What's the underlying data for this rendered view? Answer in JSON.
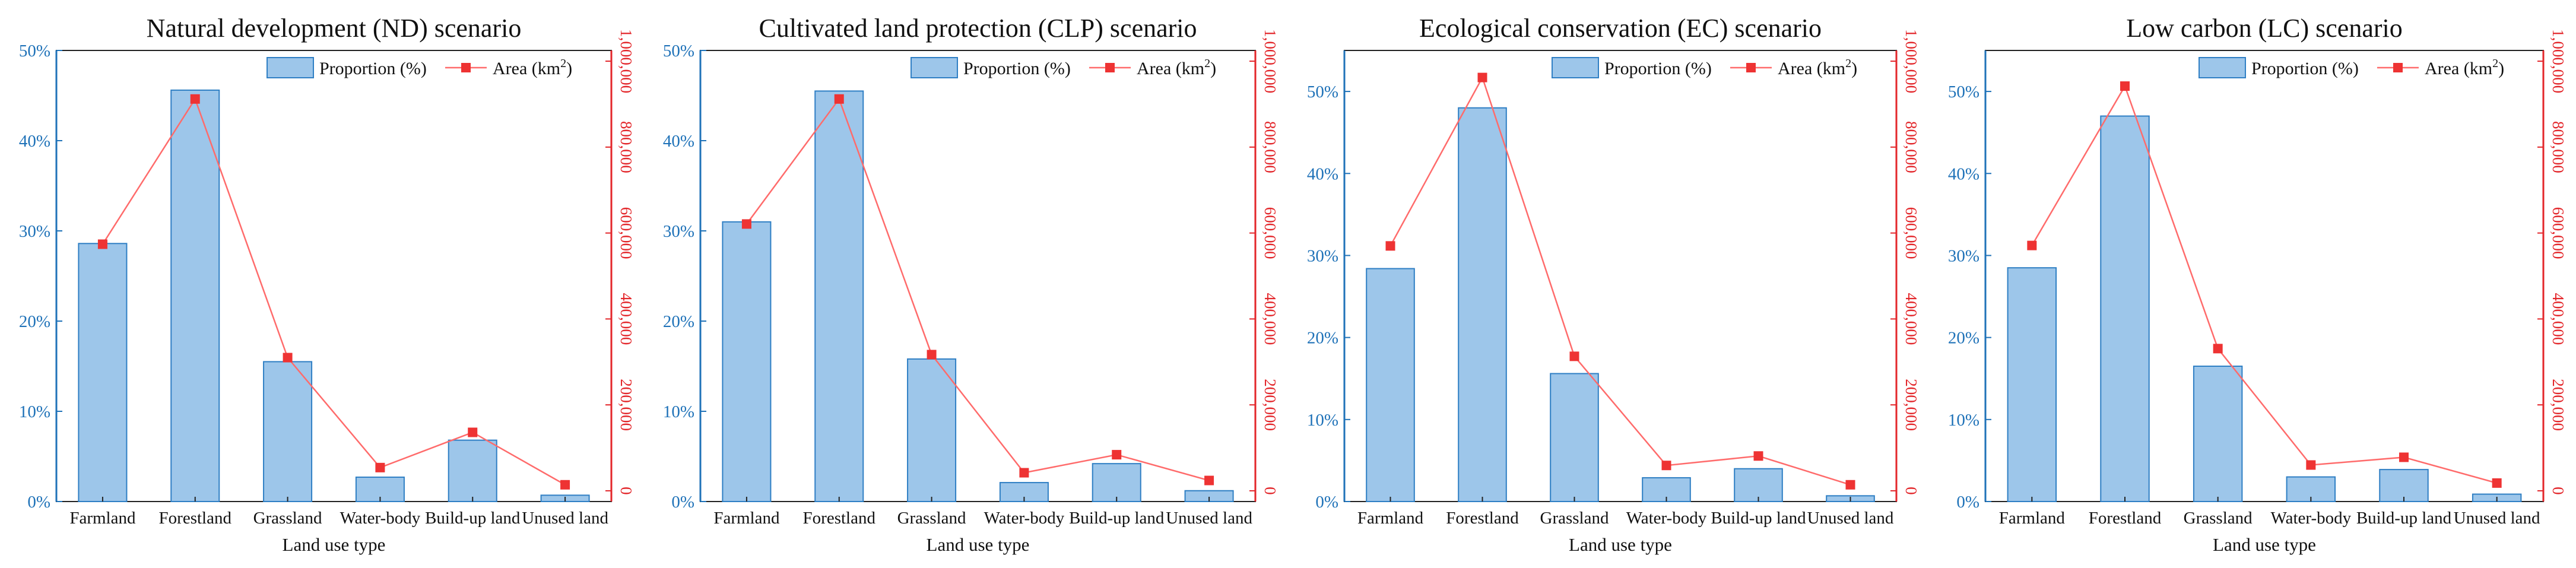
{
  "figure": {
    "colors": {
      "bar_fill": "#9dc6ea",
      "bar_stroke": "#2f7fc4",
      "line": "#ff6b6b",
      "marker": "#ee3333",
      "left_axis": "#1f72b8",
      "right_axis": "#e3262a",
      "frame": "#222222"
    },
    "legend": {
      "bar_label": "Proportion (%)",
      "line_label_text": "Area (km",
      "line_label_sup": "2",
      "line_label_end": ")"
    }
  },
  "chart_data": [
    {
      "type": "bar+line",
      "title": "Natural development (ND) scenario",
      "xlabel": "Land use type",
      "ylabel_left": "",
      "ylabel_right": "",
      "categories": [
        "Farmland",
        "Forestland",
        "Grassland",
        "Water-body",
        "Build-up land",
        "Unused land"
      ],
      "series": [
        {
          "name": "Proportion (%)",
          "type": "bar",
          "axis": "left",
          "values": [
            28.6,
            45.6,
            15.5,
            2.7,
            6.8,
            0.7
          ]
        },
        {
          "name": "Area (km2)",
          "type": "line",
          "axis": "right",
          "values": [
            574000,
            912000,
            310000,
            54000,
            136000,
            14000
          ]
        }
      ],
      "ylim_left": [
        0,
        50
      ],
      "yticks_left": [
        0,
        10,
        20,
        30,
        40,
        50
      ],
      "ytick_labels_left": [
        "0%",
        "10%",
        "20%",
        "30%",
        "40%",
        "50%"
      ],
      "ylim_right": [
        -25000,
        1025000
      ],
      "yticks_right": [
        0,
        200000,
        400000,
        600000,
        800000,
        1000000
      ],
      "ytick_labels_right": [
        "0",
        "200,000",
        "400,000",
        "600,000",
        "800,000",
        "1,000,000"
      ],
      "legend_position": "top-right"
    },
    {
      "type": "bar+line",
      "title": "Cultivated land protection (CLP) scenario",
      "xlabel": "Land use type",
      "ylabel_left": "",
      "ylabel_right": "",
      "categories": [
        "Farmland",
        "Forestland",
        "Grassland",
        "Water-body",
        "Build-up land",
        "Unused land"
      ],
      "series": [
        {
          "name": "Proportion (%)",
          "type": "bar",
          "axis": "left",
          "values": [
            31.0,
            45.5,
            15.8,
            2.1,
            4.2,
            1.2
          ]
        },
        {
          "name": "Area (km2)",
          "type": "line",
          "axis": "right",
          "values": [
            621000,
            912000,
            317000,
            42000,
            84000,
            24000
          ]
        }
      ],
      "ylim_left": [
        0,
        50
      ],
      "yticks_left": [
        0,
        10,
        20,
        30,
        40,
        50
      ],
      "ytick_labels_left": [
        "0%",
        "10%",
        "20%",
        "30%",
        "40%",
        "50%"
      ],
      "ylim_right": [
        -25000,
        1025000
      ],
      "yticks_right": [
        0,
        200000,
        400000,
        600000,
        800000,
        1000000
      ],
      "ytick_labels_right": [
        "0",
        "200,000",
        "400,000",
        "600,000",
        "800,000",
        "1,000,000"
      ],
      "legend_position": "top-right"
    },
    {
      "type": "bar+line",
      "title": "Ecological conservation (EC) scenario",
      "xlabel": "Land use type",
      "ylabel_left": "",
      "ylabel_right": "",
      "categories": [
        "Farmland",
        "Forestland",
        "Grassland",
        "Water-body",
        "Build-up land",
        "Unused land"
      ],
      "series": [
        {
          "name": "Proportion (%)",
          "type": "bar",
          "axis": "left",
          "values": [
            28.4,
            48.0,
            15.6,
            2.9,
            4.0,
            0.7
          ]
        },
        {
          "name": "Area (km2)",
          "type": "line",
          "axis": "right",
          "values": [
            570000,
            962000,
            313000,
            59000,
            81000,
            14000
          ]
        }
      ],
      "ylim_left": [
        0,
        55
      ],
      "yticks_left": [
        0,
        10,
        20,
        30,
        40,
        50
      ],
      "ytick_labels_left": [
        "0%",
        "10%",
        "20%",
        "30%",
        "40%",
        "50%"
      ],
      "ylim_right": [
        -25000,
        1025000
      ],
      "yticks_right": [
        0,
        200000,
        400000,
        600000,
        800000,
        1000000
      ],
      "ytick_labels_right": [
        "0",
        "200,000",
        "400,000",
        "600,000",
        "800,000",
        "1,000,000"
      ],
      "legend_position": "top-right"
    },
    {
      "type": "bar+line",
      "title": "Low carbon (LC) scenario",
      "xlabel": "Land use type",
      "ylabel_left": "",
      "ylabel_right": "",
      "categories": [
        "Farmland",
        "Forestland",
        "Grassland",
        "Water-body",
        "Build-up land",
        "Unused land"
      ],
      "series": [
        {
          "name": "Proportion (%)",
          "type": "bar",
          "axis": "left",
          "values": [
            28.5,
            47.0,
            16.5,
            3.0,
            3.9,
            0.9
          ]
        },
        {
          "name": "Area (km2)",
          "type": "line",
          "axis": "right",
          "values": [
            571000,
            942000,
            331000,
            60000,
            78000,
            18000
          ]
        }
      ],
      "ylim_left": [
        0,
        55
      ],
      "yticks_left": [
        0,
        10,
        20,
        30,
        40,
        50
      ],
      "ytick_labels_left": [
        "0%",
        "10%",
        "20%",
        "30%",
        "40%",
        "50%"
      ],
      "ylim_right": [
        -25000,
        1025000
      ],
      "yticks_right": [
        0,
        200000,
        400000,
        600000,
        800000,
        1000000
      ],
      "ytick_labels_right": [
        "0",
        "200,000",
        "400,000",
        "600,000",
        "800,000",
        "1,000,000"
      ],
      "legend_position": "top-right"
    }
  ]
}
